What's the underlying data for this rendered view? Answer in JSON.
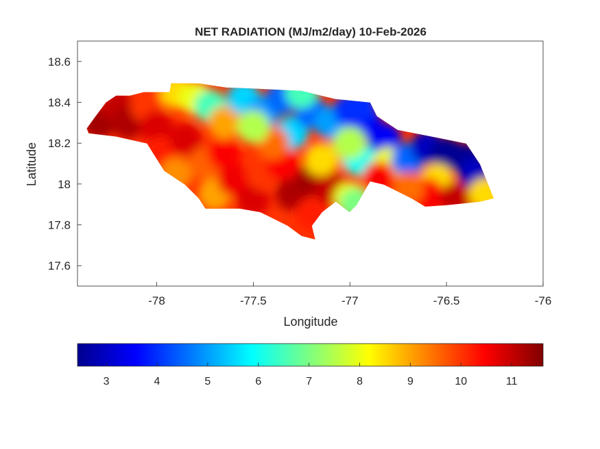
{
  "chart_data": {
    "type": "heatmap",
    "title": "NET RADIATION (MJ/m2/day) 10-Feb-2026",
    "xlabel": "Longitude",
    "ylabel": "Latitude",
    "xlim": [
      -78.41,
      -76
    ],
    "ylim": [
      17.5,
      18.7
    ],
    "xticks": [
      -78,
      -77.5,
      -77,
      -76.5,
      -76
    ],
    "xtick_labels": [
      "-78",
      "-77.5",
      "-77",
      "-76.5",
      "-76"
    ],
    "yticks": [
      17.6,
      17.8,
      18,
      18.2,
      18.4,
      18.6
    ],
    "ytick_labels": [
      "17.6",
      "17.8",
      "18",
      "18.2",
      "18.4",
      "18.6"
    ],
    "colormap": "jet",
    "clim": [
      2.43,
      11.62
    ],
    "colorbar_ticks": [
      3,
      4,
      5,
      6,
      7,
      8,
      9,
      10,
      11
    ],
    "colorbar_tick_labels": [
      "3",
      "4",
      "5",
      "6",
      "7",
      "8",
      "9",
      "10",
      "11"
    ],
    "colorbar_location": "bottom",
    "region_outline": [
      [
        -78.362,
        18.272
      ],
      [
        -78.316,
        18.332
      ],
      [
        -78.263,
        18.399
      ],
      [
        -78.21,
        18.433
      ],
      [
        -78.139,
        18.433
      ],
      [
        -78.067,
        18.45
      ],
      [
        -77.933,
        18.45
      ],
      [
        -77.925,
        18.493
      ],
      [
        -77.783,
        18.493
      ],
      [
        -77.641,
        18.473
      ],
      [
        -77.464,
        18.466
      ],
      [
        -77.25,
        18.456
      ],
      [
        -77.073,
        18.416
      ],
      [
        -76.895,
        18.399
      ],
      [
        -76.86,
        18.332
      ],
      [
        -76.753,
        18.265
      ],
      [
        -76.576,
        18.232
      ],
      [
        -76.398,
        18.198
      ],
      [
        -76.327,
        18.097
      ],
      [
        -76.284,
        17.997
      ],
      [
        -76.256,
        17.93
      ],
      [
        -76.327,
        17.913
      ],
      [
        -76.504,
        17.896
      ],
      [
        -76.611,
        17.889
      ],
      [
        -76.682,
        17.93
      ],
      [
        -76.824,
        17.997
      ],
      [
        -76.895,
        18.013
      ],
      [
        -76.966,
        17.896
      ],
      [
        -77.002,
        17.862
      ],
      [
        -77.073,
        17.913
      ],
      [
        -77.144,
        17.862
      ],
      [
        -77.197,
        17.795
      ],
      [
        -77.179,
        17.728
      ],
      [
        -77.25,
        17.745
      ],
      [
        -77.322,
        17.795
      ],
      [
        -77.464,
        17.862
      ],
      [
        -77.57,
        17.879
      ],
      [
        -77.748,
        17.879
      ],
      [
        -77.783,
        17.93
      ],
      [
        -77.854,
        17.997
      ],
      [
        -77.961,
        18.064
      ],
      [
        -78.05,
        18.198
      ],
      [
        -78.21,
        18.232
      ],
      [
        -78.352,
        18.248
      ]
    ],
    "samples": [
      [
        -78.3,
        18.3,
        11.3
      ],
      [
        -78.2,
        18.38,
        11
      ],
      [
        -78.15,
        18.3,
        11.2
      ],
      [
        -78.05,
        18.38,
        10
      ],
      [
        -78.0,
        18.28,
        10.8
      ],
      [
        -77.98,
        18.15,
        10.2
      ],
      [
        -77.9,
        18.05,
        9.2
      ],
      [
        -77.85,
        18.22,
        10.8
      ],
      [
        -77.75,
        18.1,
        9.6
      ],
      [
        -77.7,
        17.95,
        9.0
      ],
      [
        -77.65,
        18.15,
        10.5
      ],
      [
        -77.6,
        18.02,
        10.6
      ],
      [
        -77.5,
        17.92,
        10.8
      ],
      [
        -77.45,
        18.05,
        10.0
      ],
      [
        -77.35,
        18.1,
        10.5
      ],
      [
        -77.3,
        17.95,
        11.2
      ],
      [
        -77.2,
        17.85,
        10.2
      ],
      [
        -77.2,
        18.02,
        11.3
      ],
      [
        -77.1,
        17.98,
        11
      ],
      [
        -77.0,
        17.93,
        8.0
      ],
      [
        -76.97,
        17.9,
        7.0
      ],
      [
        -77.9,
        18.45,
        8.5
      ],
      [
        -77.8,
        18.42,
        8
      ],
      [
        -77.72,
        18.38,
        6.5
      ],
      [
        -77.65,
        18.3,
        9
      ],
      [
        -77.55,
        18.42,
        5.5
      ],
      [
        -77.45,
        18.35,
        5
      ],
      [
        -77.35,
        18.42,
        4.5
      ],
      [
        -77.3,
        18.25,
        5.5
      ],
      [
        -77.2,
        18.35,
        4.5
      ],
      [
        -77.1,
        18.3,
        5
      ],
      [
        -77.0,
        18.36,
        4
      ],
      [
        -77.05,
        18.15,
        9.5
      ],
      [
        -77.15,
        18.12,
        8.5
      ],
      [
        -77.4,
        18.2,
        9.5
      ],
      [
        -77.5,
        18.28,
        7.5
      ],
      [
        -76.92,
        18.3,
        3.5
      ],
      [
        -76.95,
        18.12,
        6
      ],
      [
        -76.82,
        18.22,
        3.5
      ],
      [
        -76.8,
        18.1,
        8
      ],
      [
        -76.7,
        18.12,
        4.5
      ],
      [
        -76.6,
        18.18,
        3
      ],
      [
        -76.5,
        18.15,
        2.6
      ],
      [
        -76.4,
        18.12,
        2.6
      ],
      [
        -76.35,
        18.05,
        3
      ],
      [
        -76.55,
        18.02,
        8.5
      ],
      [
        -76.6,
        17.95,
        10.5
      ],
      [
        -76.45,
        17.93,
        11
      ],
      [
        -76.3,
        17.95,
        8.5
      ],
      [
        -76.7,
        17.98,
        9.5
      ],
      [
        -76.85,
        18.03,
        10.5
      ],
      [
        -77.0,
        18.2,
        7.5
      ],
      [
        -77.25,
        18.45,
        6.5
      ],
      [
        -76.95,
        18.38,
        4
      ]
    ]
  }
}
